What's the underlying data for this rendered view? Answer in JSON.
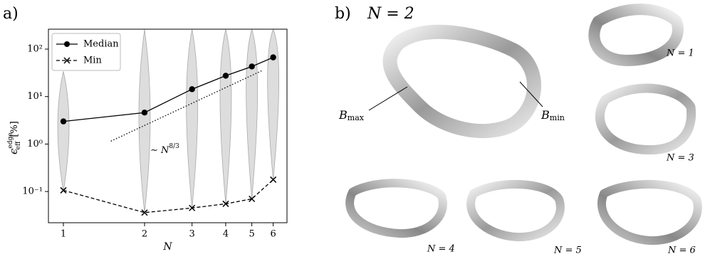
{
  "panel_a_label": "a)",
  "chart_data": {
    "type": "line",
    "xlabel": "N",
    "ylabel": {
      "symbol": "ϵ",
      "sub": "eff",
      "sup": "edge",
      "unit": "[%]"
    },
    "x": [
      1,
      2,
      3,
      4,
      5,
      6
    ],
    "series": [
      {
        "name": "Median",
        "color": "#000000",
        "marker": "circle",
        "dash": "solid",
        "values": [
          3.0,
          4.6,
          14.3,
          27.5,
          43,
          67
        ]
      },
      {
        "name": "Min",
        "color": "#000000",
        "marker": "x",
        "dash": "dashed",
        "values": [
          0.106,
          0.036,
          0.045,
          0.055,
          0.07,
          0.178
        ]
      }
    ],
    "violins": {
      "color": "#dddddd",
      "high": [
        34,
        260,
        260,
        260,
        260,
        260
      ],
      "low": [
        0.1,
        0.036,
        0.045,
        0.055,
        0.07,
        0.178
      ]
    },
    "reference_line": {
      "x": [
        1.5,
        5.5
      ],
      "values": [
        1.15,
        36
      ]
    },
    "annotation": {
      "prefix": "∼ N",
      "sup": "8/3",
      "x": 2.1,
      "y": 0.75
    },
    "xscale": "log",
    "yscale": "log",
    "xlim": [
      0.88,
      6.75
    ],
    "ylim": [
      0.022,
      263
    ],
    "xticks": [
      1,
      2,
      3,
      4,
      5,
      6
    ],
    "yticks": [
      {
        "value": 0.1,
        "label": "10⁻¹"
      },
      {
        "value": 1,
        "label": "10⁰"
      },
      {
        "value": 10,
        "label": "10¹"
      },
      {
        "value": 100,
        "label": "10²"
      }
    ],
    "legend": "upper left"
  },
  "panel_b": {
    "label": "b)",
    "title": "N = 2",
    "b_max": {
      "base": "B",
      "sub": "max"
    },
    "b_min": {
      "base": "B",
      "sub": "min"
    },
    "captions": [
      "N = 1",
      "N = 3",
      "N = 4",
      "N = 5",
      "N = 6"
    ]
  }
}
